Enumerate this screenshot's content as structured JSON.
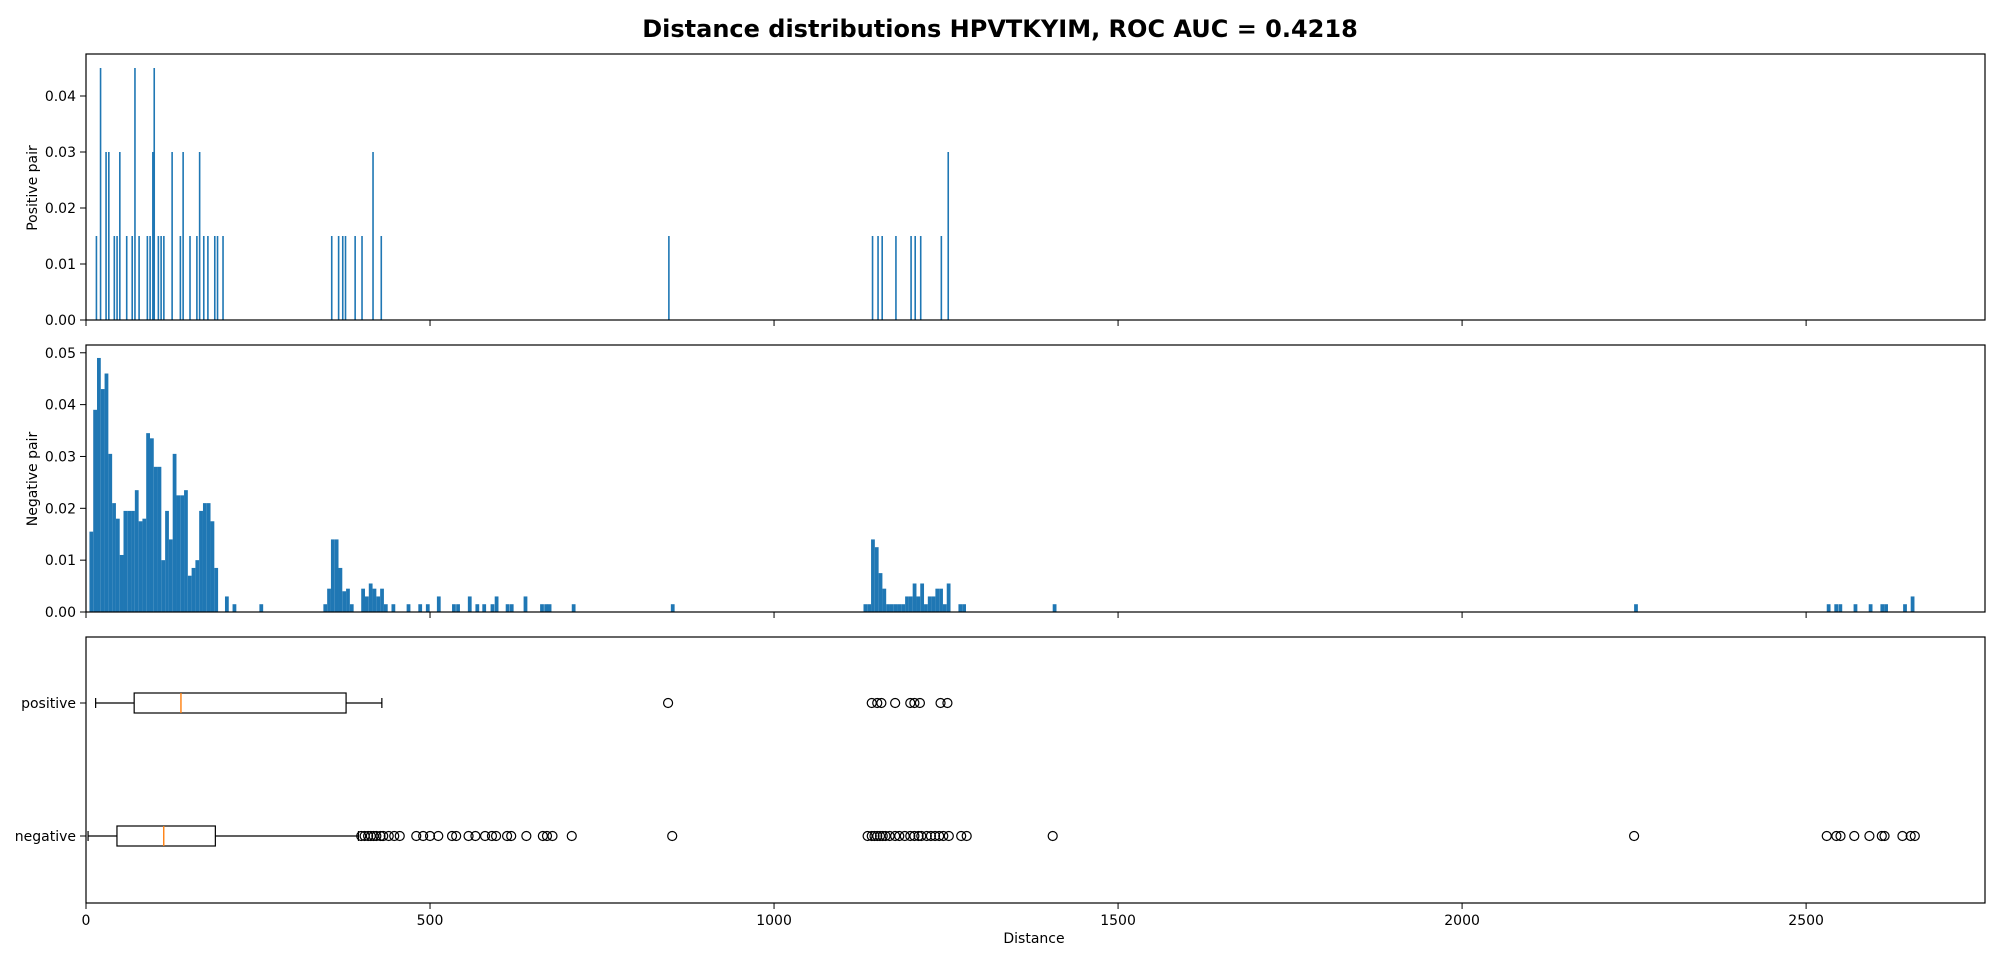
{
  "chart_data": {
    "title": "Distance distributions HPVTKYIM, ROC AUC = 0.4218",
    "type": "histogram+boxplot",
    "x_axis": {
      "label": "Distance",
      "range": [
        0,
        2760
      ],
      "ticks": [
        0,
        500,
        1000,
        1500,
        2000,
        2500
      ]
    },
    "panels": [
      {
        "type": "bar",
        "name": "positive-hist",
        "ylabel": "Positive pair",
        "ylim": [
          0,
          0.0475
        ],
        "yticks": [
          0.0,
          0.01,
          0.02,
          0.03,
          0.04
        ],
        "ytick_labels": [
          "0.00",
          "0.01",
          "0.02",
          "0.03",
          "0.04"
        ],
        "bin_width": 2,
        "bars": [
          [
            14,
            0.015
          ],
          [
            20,
            0.045
          ],
          [
            28,
            0.03
          ],
          [
            32,
            0.03
          ],
          [
            40,
            0.015
          ],
          [
            44,
            0.015
          ],
          [
            48,
            0.03
          ],
          [
            58,
            0.015
          ],
          [
            66,
            0.015
          ],
          [
            70,
            0.045
          ],
          [
            76,
            0.015
          ],
          [
            88,
            0.015
          ],
          [
            92,
            0.015
          ],
          [
            96,
            0.03
          ],
          [
            98,
            0.045
          ],
          [
            104,
            0.015
          ],
          [
            108,
            0.015
          ],
          [
            112,
            0.015
          ],
          [
            124,
            0.03
          ],
          [
            136,
            0.015
          ],
          [
            140,
            0.03
          ],
          [
            150,
            0.015
          ],
          [
            160,
            0.015
          ],
          [
            164,
            0.03
          ],
          [
            170,
            0.015
          ],
          [
            176,
            0.015
          ],
          [
            186,
            0.015
          ],
          [
            190,
            0.015
          ],
          [
            198,
            0.015
          ],
          [
            356,
            0.015
          ],
          [
            366,
            0.015
          ],
          [
            372,
            0.015
          ],
          [
            376,
            0.015
          ],
          [
            390,
            0.015
          ],
          [
            400,
            0.015
          ],
          [
            416,
            0.03
          ],
          [
            428,
            0.015
          ],
          [
            846,
            0.015
          ],
          [
            1142,
            0.015
          ],
          [
            1150,
            0.015
          ],
          [
            1156,
            0.015
          ],
          [
            1176,
            0.015
          ],
          [
            1198,
            0.015
          ],
          [
            1204,
            0.015
          ],
          [
            1212,
            0.015
          ],
          [
            1242,
            0.015
          ],
          [
            1252,
            0.03
          ]
        ]
      },
      {
        "type": "bar",
        "name": "negative-hist",
        "ylabel": "Negative pair",
        "ylim": [
          0,
          0.0515
        ],
        "yticks": [
          0.0,
          0.01,
          0.02,
          0.03,
          0.04,
          0.05
        ],
        "ytick_labels": [
          "0.00",
          "0.01",
          "0.02",
          "0.03",
          "0.04",
          "0.05"
        ],
        "bin_width": 5.5,
        "bars": [
          [
            5,
            0.0155
          ],
          [
            10.5,
            0.039
          ],
          [
            16,
            0.049
          ],
          [
            21.5,
            0.043
          ],
          [
            27,
            0.046
          ],
          [
            32.5,
            0.0305
          ],
          [
            38,
            0.021
          ],
          [
            43.5,
            0.018
          ],
          [
            49,
            0.011
          ],
          [
            54.5,
            0.0195
          ],
          [
            60,
            0.0195
          ],
          [
            65.5,
            0.0195
          ],
          [
            71,
            0.0235
          ],
          [
            76.5,
            0.0175
          ],
          [
            82,
            0.018
          ],
          [
            87.5,
            0.0345
          ],
          [
            93,
            0.0335
          ],
          [
            98.5,
            0.028
          ],
          [
            104,
            0.028
          ],
          [
            109.5,
            0.01
          ],
          [
            115,
            0.0195
          ],
          [
            120.5,
            0.014
          ],
          [
            126,
            0.0305
          ],
          [
            131.5,
            0.0225
          ],
          [
            137,
            0.0225
          ],
          [
            142.5,
            0.0235
          ],
          [
            148,
            0.007
          ],
          [
            153.5,
            0.0085
          ],
          [
            159,
            0.01
          ],
          [
            164.5,
            0.0195
          ],
          [
            170,
            0.021
          ],
          [
            175.5,
            0.021
          ],
          [
            181,
            0.0175
          ],
          [
            186.5,
            0.0085
          ],
          [
            202,
            0.003
          ],
          [
            213,
            0.0015
          ],
          [
            252,
            0.0015
          ],
          [
            345,
            0.0015
          ],
          [
            350.5,
            0.0045
          ],
          [
            356,
            0.014
          ],
          [
            361.5,
            0.014
          ],
          [
            367,
            0.0085
          ],
          [
            372.5,
            0.004
          ],
          [
            378,
            0.0045
          ],
          [
            383.5,
            0.0015
          ],
          [
            400,
            0.0045
          ],
          [
            405.5,
            0.003
          ],
          [
            411,
            0.0055
          ],
          [
            416.5,
            0.0045
          ],
          [
            422,
            0.003
          ],
          [
            427.5,
            0.0045
          ],
          [
            433,
            0.0015
          ],
          [
            444,
            0.0015
          ],
          [
            466,
            0.0015
          ],
          [
            483,
            0.0015
          ],
          [
            494,
            0.0015
          ],
          [
            510,
            0.003
          ],
          [
            532,
            0.0015
          ],
          [
            538,
            0.0015
          ],
          [
            555,
            0.003
          ],
          [
            566,
            0.0015
          ],
          [
            576,
            0.0015
          ],
          [
            588,
            0.0015
          ],
          [
            594,
            0.003
          ],
          [
            610,
            0.0015
          ],
          [
            616,
            0.0015
          ],
          [
            636,
            0.003
          ],
          [
            660,
            0.0015
          ],
          [
            666,
            0.0015
          ],
          [
            671,
            0.0015
          ],
          [
            706,
            0.0015
          ],
          [
            850,
            0.0015
          ],
          [
            1130,
            0.0015
          ],
          [
            1135.5,
            0.0015
          ],
          [
            1141,
            0.014
          ],
          [
            1146.5,
            0.0125
          ],
          [
            1152,
            0.0075
          ],
          [
            1157.5,
            0.0045
          ],
          [
            1163,
            0.0015
          ],
          [
            1168.5,
            0.0015
          ],
          [
            1174,
            0.0015
          ],
          [
            1179.5,
            0.0015
          ],
          [
            1185,
            0.0015
          ],
          [
            1190.5,
            0.003
          ],
          [
            1196,
            0.003
          ],
          [
            1201.5,
            0.0055
          ],
          [
            1207,
            0.003
          ],
          [
            1212.5,
            0.0055
          ],
          [
            1218,
            0.0015
          ],
          [
            1223.5,
            0.003
          ],
          [
            1229,
            0.003
          ],
          [
            1234.5,
            0.0045
          ],
          [
            1240,
            0.0045
          ],
          [
            1245.5,
            0.0015
          ],
          [
            1251,
            0.0055
          ],
          [
            1268,
            0.0015
          ],
          [
            1273.5,
            0.0015
          ],
          [
            1405,
            0.0015
          ],
          [
            2250,
            0.0015
          ],
          [
            2530,
            0.0015
          ],
          [
            2541,
            0.0015
          ],
          [
            2547,
            0.0015
          ],
          [
            2569,
            0.0015
          ],
          [
            2591,
            0.0015
          ],
          [
            2608,
            0.0015
          ],
          [
            2613.5,
            0.0015
          ],
          [
            2641,
            0.0015
          ],
          [
            2652,
            0.003
          ]
        ]
      },
      {
        "type": "boxplot",
        "name": "boxplot",
        "categories": [
          "positive",
          "negative"
        ],
        "boxes": [
          {
            "label": "positive",
            "whisker_low": 14,
            "q1": 70,
            "median": 138,
            "q3": 378,
            "whisker_high": 430,
            "outliers": [
              846,
              1142,
              1150,
              1156,
              1176,
              1198,
              1204,
              1212,
              1242,
              1252
            ]
          },
          {
            "label": "negative",
            "whisker_low": 3,
            "q1": 45,
            "median": 113,
            "q3": 188,
            "whisker_high": 396,
            "outliers": [
              400,
              405,
              410,
              414,
              418,
              422,
              428,
              432,
              440,
              448,
              456,
              480,
              490,
              500,
              512,
              532,
              538,
              556,
              566,
              580,
              590,
              596,
              612,
              618,
              640,
              664,
              670,
              678,
              706,
              852,
              1136,
              1142,
              1146,
              1150,
              1154,
              1158,
              1162,
              1168,
              1176,
              1182,
              1190,
              1198,
              1204,
              1210,
              1214,
              1222,
              1228,
              1234,
              1240,
              1246,
              1254,
              1272,
              1280,
              1405,
              2250,
              2530,
              2544,
              2550,
              2570,
              2592,
              2610,
              2614,
              2640,
              2652,
              2658
            ]
          }
        ]
      }
    ]
  }
}
